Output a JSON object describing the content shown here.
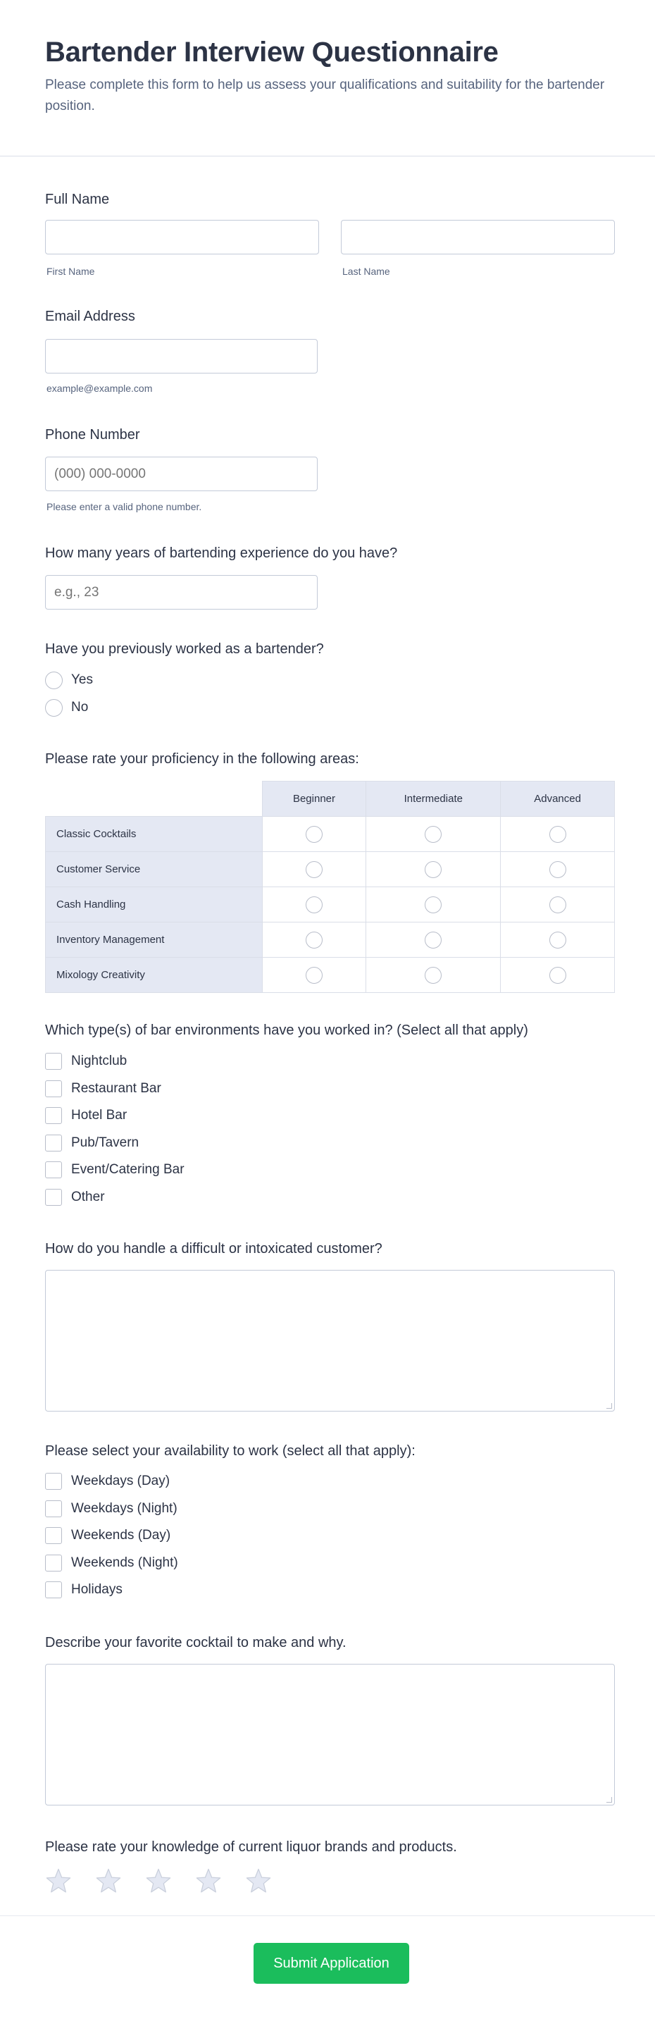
{
  "header": {
    "title": "Bartender Interview Questionnaire",
    "subtitle": "Please complete this form to help us assess your qualifications and suitability for the bartender position."
  },
  "full_name": {
    "label": "Full Name",
    "first_value": "",
    "last_value": "",
    "first_sublabel": "First Name",
    "last_sublabel": "Last Name"
  },
  "email": {
    "label": "Email Address",
    "value": "",
    "help": "example@example.com"
  },
  "phone": {
    "label": "Phone Number",
    "placeholder": "(000) 000-0000",
    "help": "Please enter a valid phone number."
  },
  "years": {
    "label": "How many years of bartending experience do you have?",
    "placeholder": "e.g., 23"
  },
  "previously": {
    "label": "Have you previously worked as a bartender?",
    "options": [
      "Yes",
      "No"
    ]
  },
  "proficiency": {
    "label": "Please rate your proficiency in the following areas:",
    "columns": [
      "Beginner",
      "Intermediate",
      "Advanced"
    ],
    "rows": [
      "Classic Cocktails",
      "Customer Service",
      "Cash Handling",
      "Inventory Management",
      "Mixology Creativity"
    ]
  },
  "environments": {
    "label": "Which type(s) of bar environments have you worked in? (Select all that apply)",
    "options": [
      "Nightclub",
      "Restaurant Bar",
      "Hotel Bar",
      "Pub/Tavern",
      "Event/Catering Bar",
      "Other"
    ]
  },
  "difficult": {
    "label": "How do you handle a difficult or intoxicated customer?",
    "value": ""
  },
  "availability": {
    "label": "Please select your availability to work (select all that apply):",
    "options": [
      "Weekdays (Day)",
      "Weekdays (Night)",
      "Weekends (Day)",
      "Weekends (Night)",
      "Holidays"
    ]
  },
  "cocktail": {
    "label": "Describe your favorite cocktail to make and why.",
    "value": ""
  },
  "knowledge": {
    "label": "Please rate your knowledge of current liquor brands and products.",
    "max_stars": 5,
    "rating": 0
  },
  "submit": {
    "label": "Submit Application"
  },
  "colors": {
    "accent": "#1bbd5c",
    "text": "#2c3345",
    "muted": "#57647e",
    "matrix_bg": "#e4e8f3",
    "border": "#c3cad8"
  }
}
